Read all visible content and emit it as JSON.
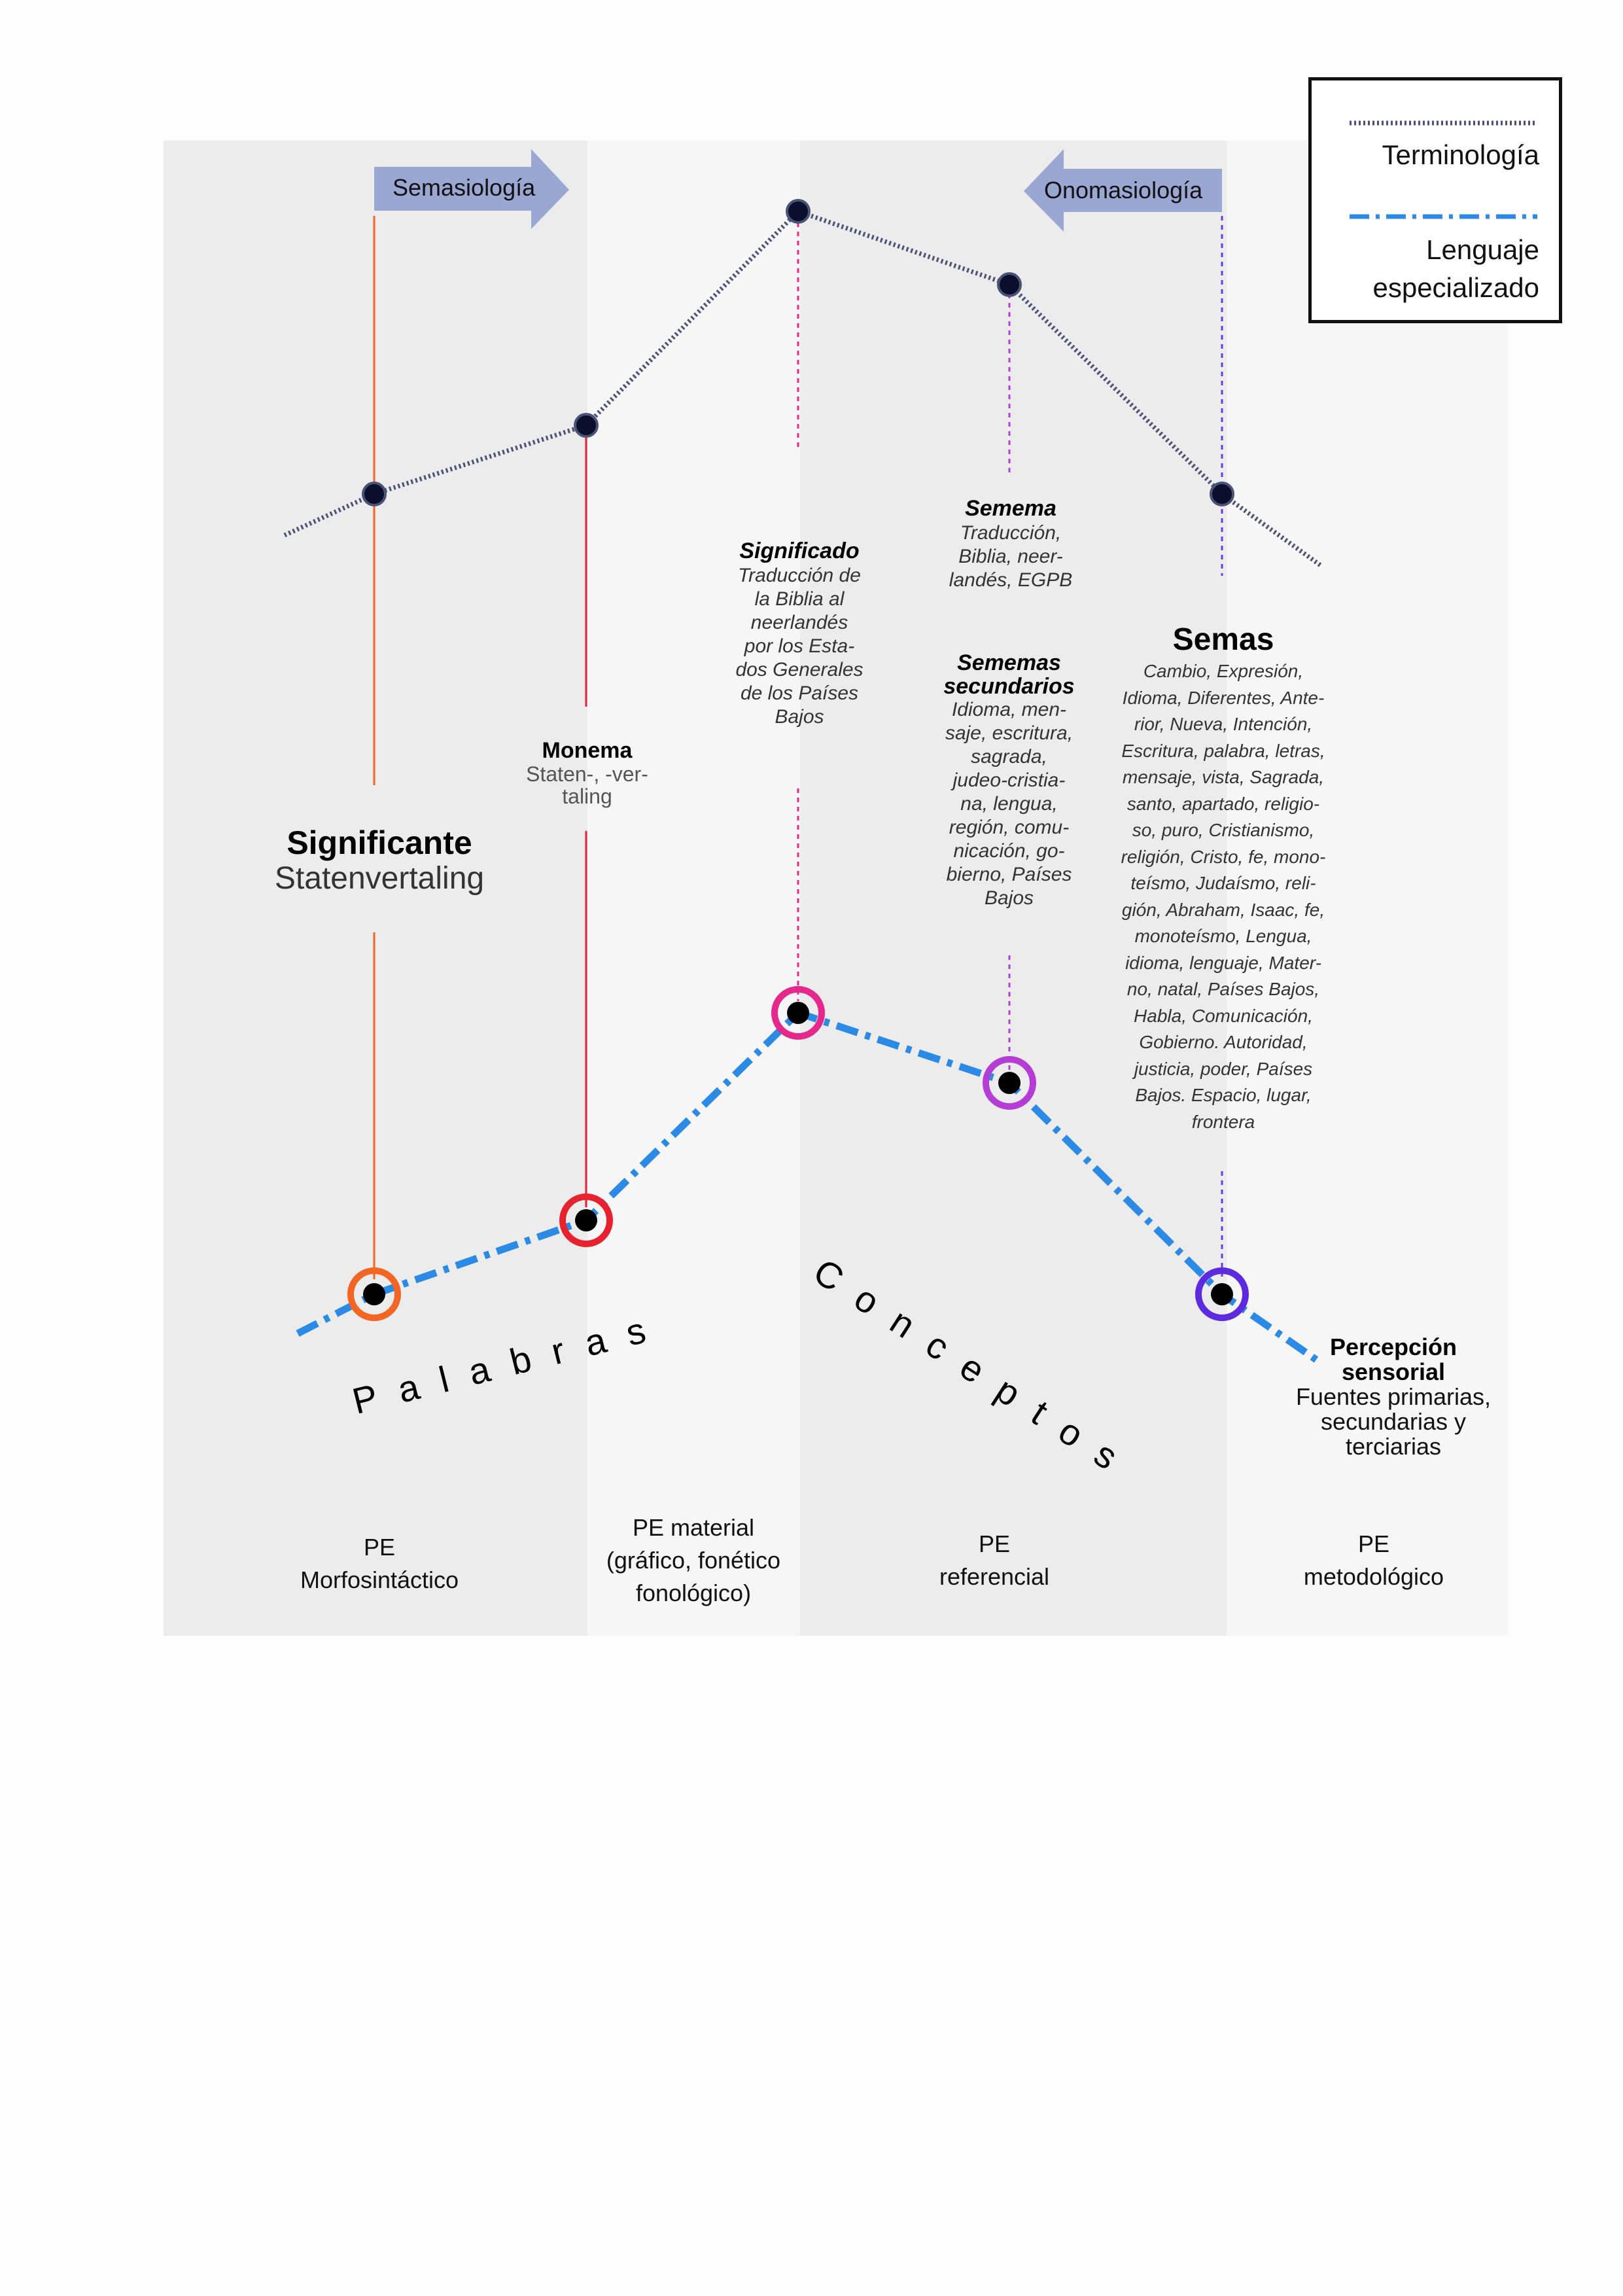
{
  "arrows": {
    "left": "Semasiología",
    "right": "Onomasiología"
  },
  "legend": {
    "terminology": "Terminología",
    "specialized": "Lenguaje especializado",
    "colors": {
      "terminology": "#4a5377",
      "specialized": "#2b8ae6"
    }
  },
  "labels": {
    "significante": {
      "title": "Significante",
      "text": "Statenvertaling"
    },
    "monema": {
      "title": "Monema",
      "text": "Staten-, -ver-\ntaling"
    },
    "significado": {
      "title": "Significado",
      "text": "Traducción de\nla Biblia al\nneerlandés\npor  los Esta-\ndos Generales\nde los Países\nBajos"
    },
    "semema": {
      "title": "Semema",
      "text": "Traducción,\nBiblia, neer-\nlandés, EGPB"
    },
    "sememas_secundarios": {
      "title": "Sememas\nsecundarios",
      "text": "Idioma, men-\nsaje, escritura,\nsagrada,\njudeo-cristia-\nna, lengua,\nregión, comu-\nnicación, go-\nbierno, Países\nBajos"
    },
    "semas": {
      "title": "Semas",
      "text": "Cambio, Expresión,\nIdioma, Diferentes, Ante-\nrior, Nueva, Intención,\nEscritura, palabra, letras,\nmensaje, vista, Sagrada,\nsanto, apartado, religio-\nso, puro, Cristianismo,\nreligión, Cristo, fe, mono-\nteísmo, Judaísmo, reli-\ngión, Abraham, Isaac, fe,\nmonoteísmo, Lengua,\nidioma, lenguaje, Mater-\nno, natal, Países Bajos,\nHabla, Comunicación,\nGobierno. Autoridad,\njusticia, poder, Países\nBajos. Espacio, lugar,\nfrontera"
    },
    "percepcion": {
      "title": "Percepción\nsensorial",
      "text": "Fuentes primarias,\nsecundarias y\nterciarias"
    }
  },
  "words": {
    "palabras": "Palabras",
    "conceptos": "Conceptos"
  },
  "pe": [
    "PE\nMorfosintáctico",
    "PE material\n(gráfico, fonético\nfonológico)",
    "PE\nreferencial",
    "PE\nmetodológico"
  ],
  "ring_colors": [
    "#f26522",
    "#e8212e",
    "#e6288c",
    "#b43ed4",
    "#5e2ae0"
  ]
}
